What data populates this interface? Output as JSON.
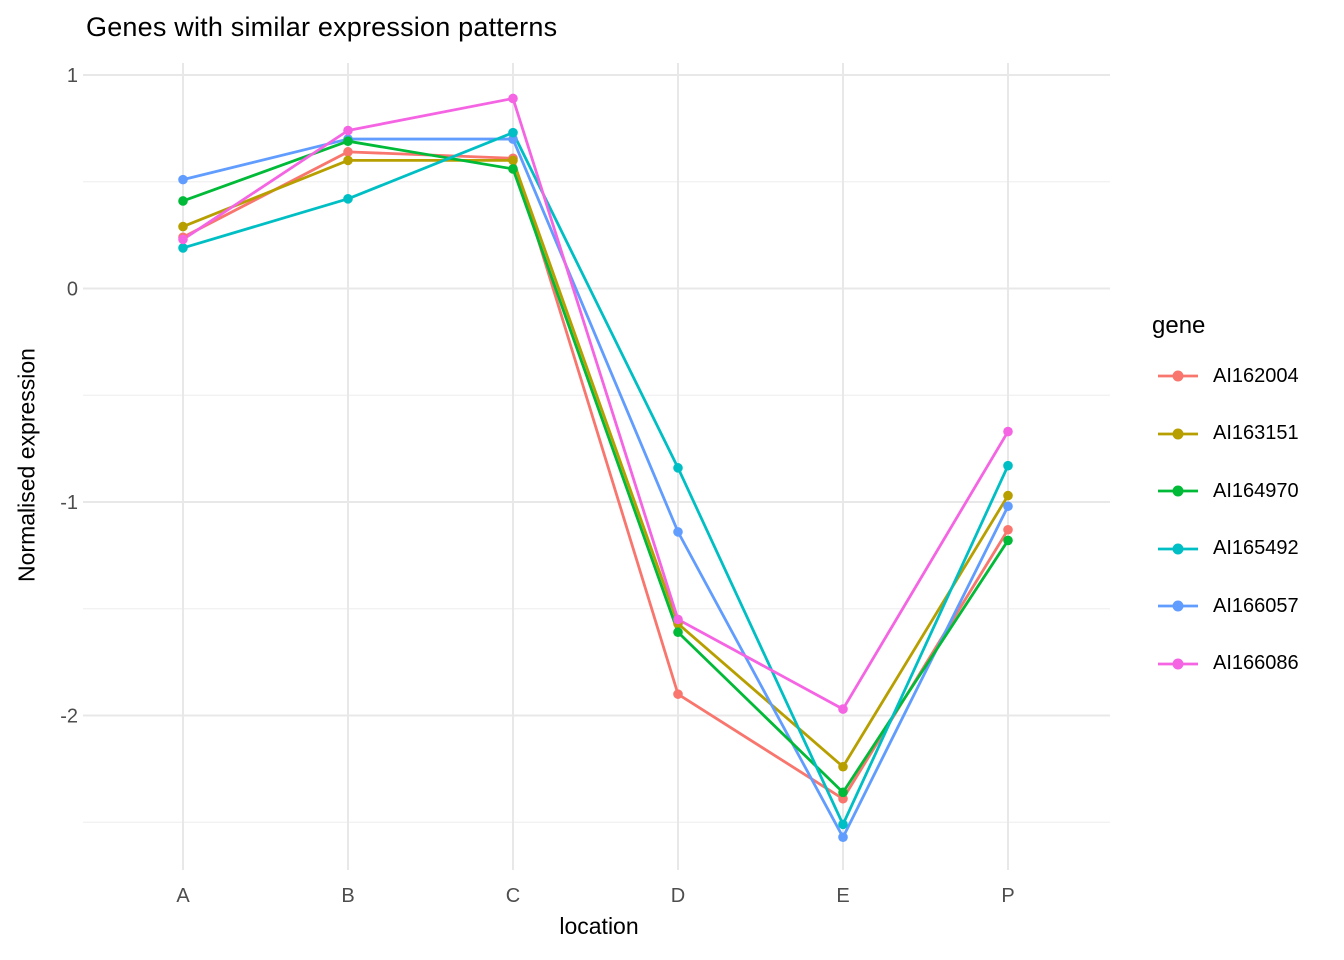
{
  "title": "Genes with similar expression patterns",
  "chart_data": {
    "type": "line",
    "title": "Genes with similar expression patterns",
    "xlabel": "location",
    "ylabel": "Normalised expression",
    "categories": [
      "A",
      "B",
      "C",
      "D",
      "E",
      "P"
    ],
    "series": [
      {
        "name": "AI162004",
        "color": "#F8766D",
        "values": [
          0.24,
          0.64,
          0.61,
          -1.9,
          -2.39,
          -1.13
        ]
      },
      {
        "name": "AI163151",
        "color": "#B79F00",
        "values": [
          0.29,
          0.6,
          0.6,
          -1.57,
          -2.24,
          -0.97
        ]
      },
      {
        "name": "AI164970",
        "color": "#00BA38",
        "values": [
          0.41,
          0.69,
          0.56,
          -1.61,
          -2.36,
          -1.18
        ]
      },
      {
        "name": "AI165492",
        "color": "#00BFC4",
        "values": [
          0.19,
          0.42,
          0.73,
          -0.84,
          -2.51,
          -0.83
        ]
      },
      {
        "name": "AI166057",
        "color": "#619CFF",
        "values": [
          0.51,
          0.7,
          0.7,
          -1.14,
          -2.57,
          -1.02
        ]
      },
      {
        "name": "AI166086",
        "color": "#F564E3",
        "values": [
          0.23,
          0.74,
          0.89,
          -1.55,
          -1.97,
          -0.67
        ]
      }
    ],
    "legend_title": "gene",
    "legend_position": "right",
    "y_major_ticks": [
      1,
      0,
      -1,
      -2
    ],
    "y_minor_ticks": [
      0.5,
      -0.5,
      -1.5,
      -2.5
    ],
    "ylim": [
      -2.73,
      1.06
    ],
    "grid": true,
    "point_draw_order": [
      0,
      1,
      4,
      2,
      3,
      5
    ]
  },
  "colors": {
    "background": "#FFFFFF",
    "grid_major": "#E8E8E8",
    "grid_minor": "#F1F1F1",
    "tick_label": "#4D4D4D",
    "text": "#000000"
  }
}
